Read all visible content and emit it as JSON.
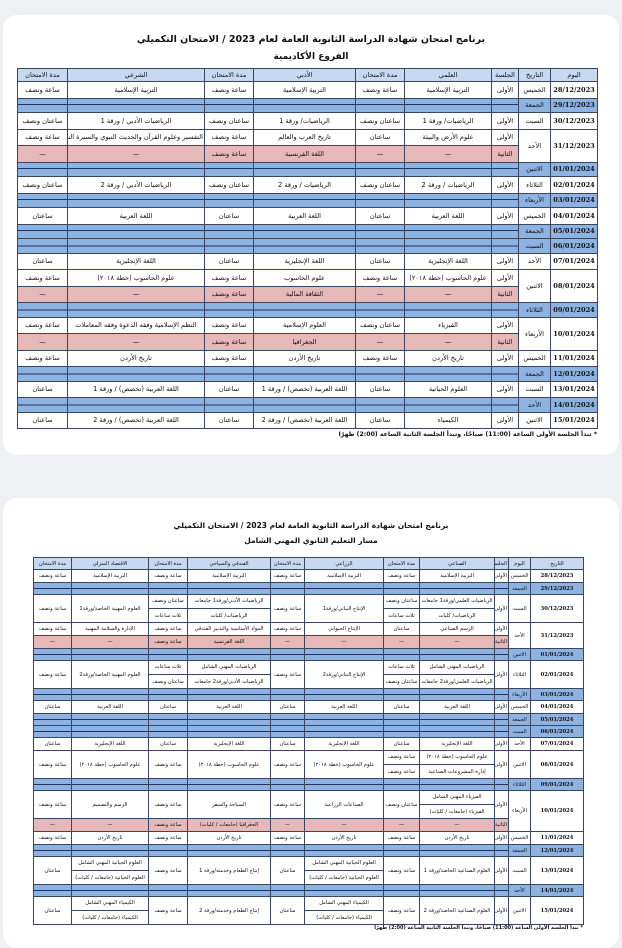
{
  "academic": {
    "title": "برنامج امتحان شهادة الدراسة الثانوية العامة لعام 2023 / الامتحان التكميلي",
    "subtitle": "الفروع الأكاديمية",
    "headers": [
      "اليوم",
      "التاريخ",
      "الجلسة",
      "العلمي",
      "مدة الامتحان",
      "الأدبي",
      "مدة الامتحان",
      "الشرعي",
      "مدة الامتحان"
    ],
    "rows": [
      {
        "date": "28/12/2023",
        "day": "الخميس",
        "sessions": [
          {
            "session": "الأولى",
            "cells": [
              "التربية الإسلامية",
              "ساعة ونصف",
              "التربية الإسلامية",
              "ساعة ونصف",
              "التربية الإسلامية",
              "ساعة ونصف"
            ]
          }
        ]
      },
      {
        "date": "29/12/2023",
        "day": "الجمعة",
        "blue": true
      },
      {
        "date": "30/12/2023",
        "day": "السبت",
        "sessions": [
          {
            "session": "الأولى",
            "cells": [
              "الرياضيات/ ورقة 1",
              "ساعتان ونصف",
              "الرياضيات/ ورقة 1",
              "ساعتان ونصف",
              "الرياضيات الأدبي / ورقة 1",
              "ساعتان ونصف"
            ]
          }
        ]
      },
      {
        "date": "31/12/2023",
        "day": "الأحد",
        "sessions": [
          {
            "session": "الأولى",
            "cells": [
              "علوم الأرض والبيئة",
              "ساعتان",
              "تاريخ العرب والعالم",
              "ساعة ونصف",
              "التفسير وعلوم القرآن والحديث النبوي والسيرة النبوية",
              "ساعة ونصف"
            ]
          },
          {
            "session": "الثانية",
            "pink": true,
            "cells": [
              "—",
              "—",
              "اللغة الفرنسية",
              "ساعة ونصف",
              "—",
              "—"
            ]
          }
        ]
      },
      {
        "date": "01/01/2024",
        "day": "الاثنين",
        "blue": true
      },
      {
        "date": "02/01/2024",
        "day": "الثلاثاء",
        "sessions": [
          {
            "session": "الأولى",
            "cells": [
              "الرياضيات / ورقة 2",
              "ساعتان ونصف",
              "الرياضيات / ورقة 2",
              "ساعتان ونصف",
              "الرياضيات الأدبي / ورقة 2",
              "ساعتان ونصف"
            ]
          }
        ]
      },
      {
        "date": "03/01/2024",
        "day": "الأربعاء",
        "blue": true
      },
      {
        "date": "04/01/2024",
        "day": "الخميس",
        "sessions": [
          {
            "session": "الأولى",
            "cells": [
              "اللغة العربية",
              "ساعتان",
              "اللغة العربية",
              "ساعتان",
              "اللغة العربية",
              "ساعتان"
            ]
          }
        ]
      },
      {
        "date": "05/01/2024",
        "day": "الجمعة",
        "blue": true
      },
      {
        "date": "06/01/2024",
        "day": "السبت",
        "blue": true
      },
      {
        "date": "07/01/2024",
        "day": "الأحد",
        "sessions": [
          {
            "session": "الأولى",
            "cells": [
              "اللغة الإنجليزية",
              "ساعتان",
              "اللغة الإنجليزية",
              "ساعتان",
              "اللغة الإنجليزية",
              "ساعتان"
            ]
          }
        ]
      },
      {
        "date": "08/01/2024",
        "day": "الاثنين",
        "sessions": [
          {
            "session": "الأولى",
            "cells": [
              "علوم الحاسوب (خطة ٢٠١٨)",
              "ساعة ونصف",
              "علوم الحاسوب",
              "ساعة ونصف",
              "علوم الحاسوب (خطة ٢٠١٨)",
              "ساعة ونصف"
            ]
          },
          {
            "session": "الثانية",
            "pink": true,
            "cells": [
              "—",
              "—",
              "الثقافة المالية",
              "ساعة ونصف",
              "—",
              "—"
            ]
          }
        ]
      },
      {
        "date": "09/01/2024",
        "day": "الثلاثاء",
        "blue": true
      },
      {
        "date": "10/01/2024",
        "day": "الأربعاء",
        "sessions": [
          {
            "session": "الأولى",
            "cells": [
              "الفيزياء",
              "ساعتان ونصف",
              "العلوم الإسلامية",
              "ساعة ونصف",
              "النظم الإسلامية وفقه الدعوة وفقه المعاملات",
              "ساعة ونصف"
            ]
          },
          {
            "session": "الثانية",
            "pink": true,
            "cells": [
              "—",
              "—",
              "الجغرافيا",
              "ساعة ونصف",
              "—",
              "—"
            ]
          }
        ]
      },
      {
        "date": "11/01/2024",
        "day": "الخميس",
        "sessions": [
          {
            "session": "الأولى",
            "cells": [
              "تاريخ الأردن",
              "ساعة ونصف",
              "تاريخ الأردن",
              "ساعة ونصف",
              "تاريخ الأردن",
              "ساعة ونصف"
            ]
          }
        ]
      },
      {
        "date": "12/01/2024",
        "day": "الجمعة",
        "blue": true
      },
      {
        "date": "13/01/2024",
        "day": "السبت",
        "sessions": [
          {
            "session": "الأولى",
            "cells": [
              "العلوم الحياتية",
              "ساعتان",
              "اللغة العربية (تخصص) / ورقة 1",
              "ساعتان",
              "اللغة العربية (تخصص) / ورقة 1",
              "ساعتان"
            ]
          }
        ]
      },
      {
        "date": "14/01/2024",
        "day": "الأحد",
        "blue": true
      },
      {
        "date": "15/01/2024",
        "day": "الاثنين",
        "sessions": [
          {
            "session": "الأولى",
            "cells": [
              "الكيمياء",
              "ساعتان",
              "اللغة العربية (تخصص) / ورقة 2",
              "ساعتان",
              "اللغة العربية (تخصص) / ورقة 2",
              "ساعتان"
            ]
          }
        ]
      }
    ],
    "footnote": "* تبدأ الجلسة الأولى الساعة (11:00) صباحًا، وتبدأ الجلسة الثانية الساعة (2:00) ظهرًا"
  },
  "vocational": {
    "title": "برنامج امتحان شهادة الدراسة الثانوية العامة لعام 2023 / الامتحان التكميلي",
    "subtitle": "مسار التعليم الثانوي المهني الشامل",
    "headers": [
      "التاريخ",
      "اليوم",
      "الجلسة",
      "الصناعي",
      "مدة الامتحان",
      "الزراعي",
      "مدة الامتحان",
      "الفندقي والسياحي",
      "مدة الامتحان",
      "الاقتصاد المنزلي",
      "مدة الامتحان"
    ],
    "rows": [
      {
        "date": "28/12/2023",
        "day": "الخميس",
        "sessions": [
          {
            "session": "الأولى",
            "cells": [
              "التربية الإسلامية",
              "ساعة ونصف",
              "التربية الإسلامية",
              "ساعة ونصف",
              "التربية الإسلامية",
              "ساعة ونصف",
              "التربية الإسلامية",
              "ساعة ونصف"
            ]
          }
        ]
      },
      {
        "date": "29/12/2023",
        "day": "الجمعة",
        "blue": true
      },
      {
        "date": "30/12/2023",
        "day": "السبت",
        "double": true,
        "sessions": [
          {
            "session": "الأولى",
            "cells": [
              [
                "الرياضيات العلمي/ورقة1 جامعات",
                "الرياضيات/ كليات"
              ],
              [
                "ساعتان ونصف",
                "ثلاث ساعات"
              ],
              "الإنتاج النباتي/ورقة1",
              "ساعة ونصف",
              [
                "الرياضيات الأدبي/ورقة1 جامعات",
                "الرياضيات/ كليات"
              ],
              [
                "ساعتان ونصف",
                "ثلاث ساعات"
              ],
              "العلوم المهنية الخاصة/ورقة1",
              "ساعة ونصف"
            ]
          }
        ]
      },
      {
        "date": "31/12/2023",
        "day": "الأحد",
        "sessions": [
          {
            "session": "الأولى",
            "cells": [
              "الرسم الصناعي",
              "ساعتان",
              "الإنتاج الحيواني",
              "ساعة ونصف",
              "المواد الأساسية والتدبير الفندقي",
              "ساعة ونصف",
              "الإدارة والسلامة المهنية",
              "ساعة ونصف"
            ]
          },
          {
            "session": "الثانية",
            "pink": true,
            "cells": [
              "—",
              "—",
              "—",
              "—",
              "اللغة الفرنسية",
              "ساعة ونصف",
              "—",
              "—"
            ]
          }
        ]
      },
      {
        "date": "01/01/2024",
        "day": "الاثنين",
        "blue": true
      },
      {
        "date": "02/01/2024",
        "day": "الثلاثاء",
        "double": true,
        "sessions": [
          {
            "session": "الأولى",
            "cells": [
              [
                "الرياضيات المهني الشامل",
                "الرياضيات العلمي/ورقة2 جامعات"
              ],
              [
                "ثلاث ساعات",
                "ساعتان ونصف"
              ],
              "الإنتاج النباتي/ورقة2",
              "ساعة ونصف",
              [
                "الرياضيات المهني الشامل",
                "الرياضيات الأدبي/ورقة2 جامعات"
              ],
              [
                "ثلاث ساعات",
                "ساعتان ونصف"
              ],
              "العلوم المهنية الخاصة/ورقة2",
              "ساعة ونصف"
            ]
          }
        ]
      },
      {
        "date": "03/01/2024",
        "day": "الأربعاء",
        "blue": true
      },
      {
        "date": "04/01/2024",
        "day": "الخميس",
        "sessions": [
          {
            "session": "الأولى",
            "cells": [
              "اللغة العربية",
              "ساعتان",
              "اللغة العربية",
              "ساعتان",
              "اللغة العربية",
              "ساعتان",
              "اللغة العربية",
              "ساعتان"
            ]
          }
        ]
      },
      {
        "date": "05/01/2024",
        "day": "الجمعة",
        "blue": true
      },
      {
        "date": "06/01/2024",
        "day": "السبت",
        "blue": true
      },
      {
        "date": "07/01/2024",
        "day": "الأحد",
        "sessions": [
          {
            "session": "الأولى",
            "cells": [
              "اللغة الإنجليزية",
              "ساعتان",
              "اللغة الإنجليزية",
              "ساعتان",
              "اللغة الإنجليزية",
              "ساعتان",
              "اللغة الإنجليزية",
              "ساعتان"
            ]
          }
        ]
      },
      {
        "date": "08/01/2024",
        "day": "الاثنين",
        "double": true,
        "sessions": [
          {
            "session": "الأولى",
            "cells": [
              [
                "علوم الحاسوب (خطة ٢٠١٨)",
                "إدارة المشروعات الصناعية"
              ],
              [
                "ساعة ونصف",
                "ساعة ونصف"
              ],
              "علوم الحاسوب (خطة ٢٠١٨)",
              "ساعة ونصف",
              "علوم الحاسوب (خطة ٢٠١٨)",
              "ساعة ونصف",
              "علوم الحاسوب (خطة ٢٠١٨)",
              "ساعة ونصف"
            ]
          }
        ]
      },
      {
        "date": "09/01/2024",
        "day": "الثلاثاء",
        "blue": true
      },
      {
        "date": "10/01/2024",
        "day": "الأربعاء",
        "sessions": [
          {
            "session": "الأولى",
            "double": true,
            "cells": [
              [
                "الفيزياء المهني الشامل",
                "الفيزياء (جامعات / كليات)"
              ],
              "ساعتان ونصف",
              "الصناعات الزراعية",
              "ساعة ونصف",
              "السياحة والسفر",
              "ساعة ونصف",
              "الرسم والتصميم",
              "ساعة ونصف"
            ]
          },
          {
            "session": "الثانية",
            "pink": true,
            "cells": [
              "—",
              "—",
              "—",
              "—",
              "الجغرافيا (جامعات / كليات)",
              "ساعة ونصف",
              "—",
              "—"
            ]
          }
        ]
      },
      {
        "date": "11/01/2024",
        "day": "الخميس",
        "sessions": [
          {
            "session": "الأولى",
            "cells": [
              "تاريخ الأردن",
              "ساعة ونصف",
              "تاريخ الأردن",
              "ساعة ونصف",
              "تاريخ الأردن",
              "ساعة ونصف",
              "تاريخ الأردن",
              "ساعة ونصف"
            ]
          }
        ]
      },
      {
        "date": "12/01/2024",
        "day": "الجمعة",
        "blue": true
      },
      {
        "date": "13/01/2024",
        "day": "السبت",
        "double": true,
        "sessions": [
          {
            "session": "الأولى",
            "cells": [
              "العلوم الصناعية الخاصة/ورقة 1",
              "ساعة ونصف",
              [
                "العلوم الحياتية المهني الشامل",
                "العلوم الحياتية (جامعات / كليات)"
              ],
              "ساعتان",
              "إنتاج الطعام وخدمته/ورقة 1",
              "ساعة ونصف",
              [
                "العلوم الحياتية المهني الشامل",
                "العلوم الحياتية (جامعات / كليات)"
              ],
              "ساعتان"
            ]
          }
        ]
      },
      {
        "date": "14/01/2024",
        "day": "الأحد",
        "blue": true
      },
      {
        "date": "15/01/2024",
        "day": "الاثنين",
        "double": true,
        "sessions": [
          {
            "session": "الأولى",
            "cells": [
              "العلوم الصناعية الخاصة/ورقة 2",
              "ساعة ونصف",
              [
                "الكيمياء المهني الشامل",
                "الكيمياء (جامعات / كليات)"
              ],
              "ساعتان",
              "إنتاج الطعام وخدمته/ورقة 2",
              "ساعة ونصف",
              [
                "الكيمياء المهني الشامل",
                "الكيمياء (جامعات / كليات)"
              ],
              "ساعتان"
            ]
          }
        ]
      }
    ],
    "footnote": "* تبدأ الجلسة الأولى الساعة (11:00) صباحًا، وتبدأ الجلسة الثانية الساعة (2:00) ظهرًا"
  },
  "colors": {
    "header": "#c6d9f1",
    "off_day": "#8db3e2",
    "second_session": "#e6b9b8"
  }
}
